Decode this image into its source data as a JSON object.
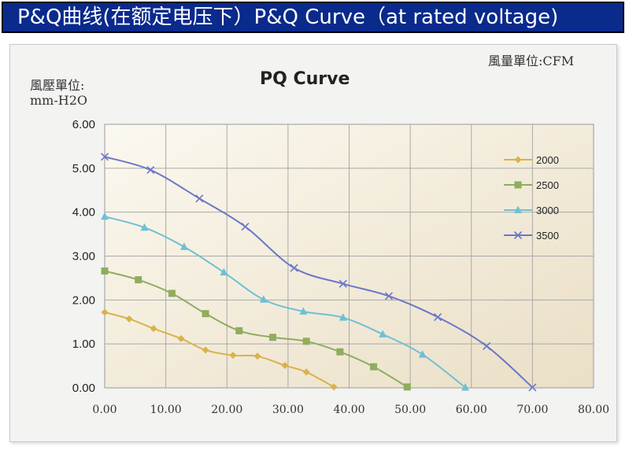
{
  "banner": {
    "title": "P&Q曲线(在额定电压下）P&Q Curve（at rated voltage)"
  },
  "units": {
    "flow": "風量單位:CFM",
    "pressure_line1": "風壓單位:",
    "pressure_line2": "mm-H2O"
  },
  "colors": {
    "banner_bg": "#0a2a8c",
    "plot_bg_light": "#fbf8ef",
    "plot_bg_dark": "#eadfc6"
  },
  "chart_data": {
    "type": "line",
    "title": "PQ Curve",
    "xlabel": "",
    "ylabel": "",
    "xlim": [
      0,
      80
    ],
    "ylim": [
      0,
      6
    ],
    "grid": true,
    "legend": "right",
    "xticks": [
      "0.00",
      "10.00",
      "20.00",
      "30.00",
      "40.00",
      "50.00",
      "60.00",
      "70.00",
      "80.00"
    ],
    "yticks": [
      "0.00",
      "1.00",
      "2.00",
      "3.00",
      "4.00",
      "5.00",
      "6.00"
    ],
    "series": [
      {
        "name": "2000",
        "color": "#d9b24a",
        "marker": "diamond",
        "points": [
          [
            0,
            1.72
          ],
          [
            4,
            1.57
          ],
          [
            8,
            1.35
          ],
          [
            12.5,
            1.12
          ],
          [
            16.5,
            0.86
          ],
          [
            21,
            0.74
          ],
          [
            25,
            0.72
          ],
          [
            29.5,
            0.51
          ],
          [
            33,
            0.36
          ],
          [
            37.5,
            0.02
          ]
        ]
      },
      {
        "name": "2500",
        "color": "#8fac5f",
        "marker": "square",
        "points": [
          [
            0,
            2.66
          ],
          [
            5.5,
            2.46
          ],
          [
            11,
            2.15
          ],
          [
            16.5,
            1.69
          ],
          [
            22,
            1.3
          ],
          [
            27.5,
            1.15
          ],
          [
            33,
            1.06
          ],
          [
            38.5,
            0.82
          ],
          [
            44,
            0.48
          ],
          [
            49.5,
            0.02
          ]
        ]
      },
      {
        "name": "3000",
        "color": "#6fc0d4",
        "marker": "triangle",
        "points": [
          [
            0,
            3.9
          ],
          [
            6.5,
            3.65
          ],
          [
            13,
            3.21
          ],
          [
            19.5,
            2.63
          ],
          [
            26,
            2.01
          ],
          [
            32.5,
            1.74
          ],
          [
            39,
            1.6
          ],
          [
            45.5,
            1.22
          ],
          [
            52,
            0.76
          ],
          [
            59,
            0.01
          ]
        ]
      },
      {
        "name": "3500",
        "color": "#6b77c8",
        "marker": "x",
        "points": [
          [
            0,
            5.26
          ],
          [
            7.5,
            4.96
          ],
          [
            15.5,
            4.31
          ],
          [
            23,
            3.67
          ],
          [
            31,
            2.73
          ],
          [
            39,
            2.37
          ],
          [
            46.5,
            2.09
          ],
          [
            54.5,
            1.61
          ],
          [
            62.5,
            0.95
          ],
          [
            70,
            0.01
          ]
        ]
      }
    ]
  }
}
